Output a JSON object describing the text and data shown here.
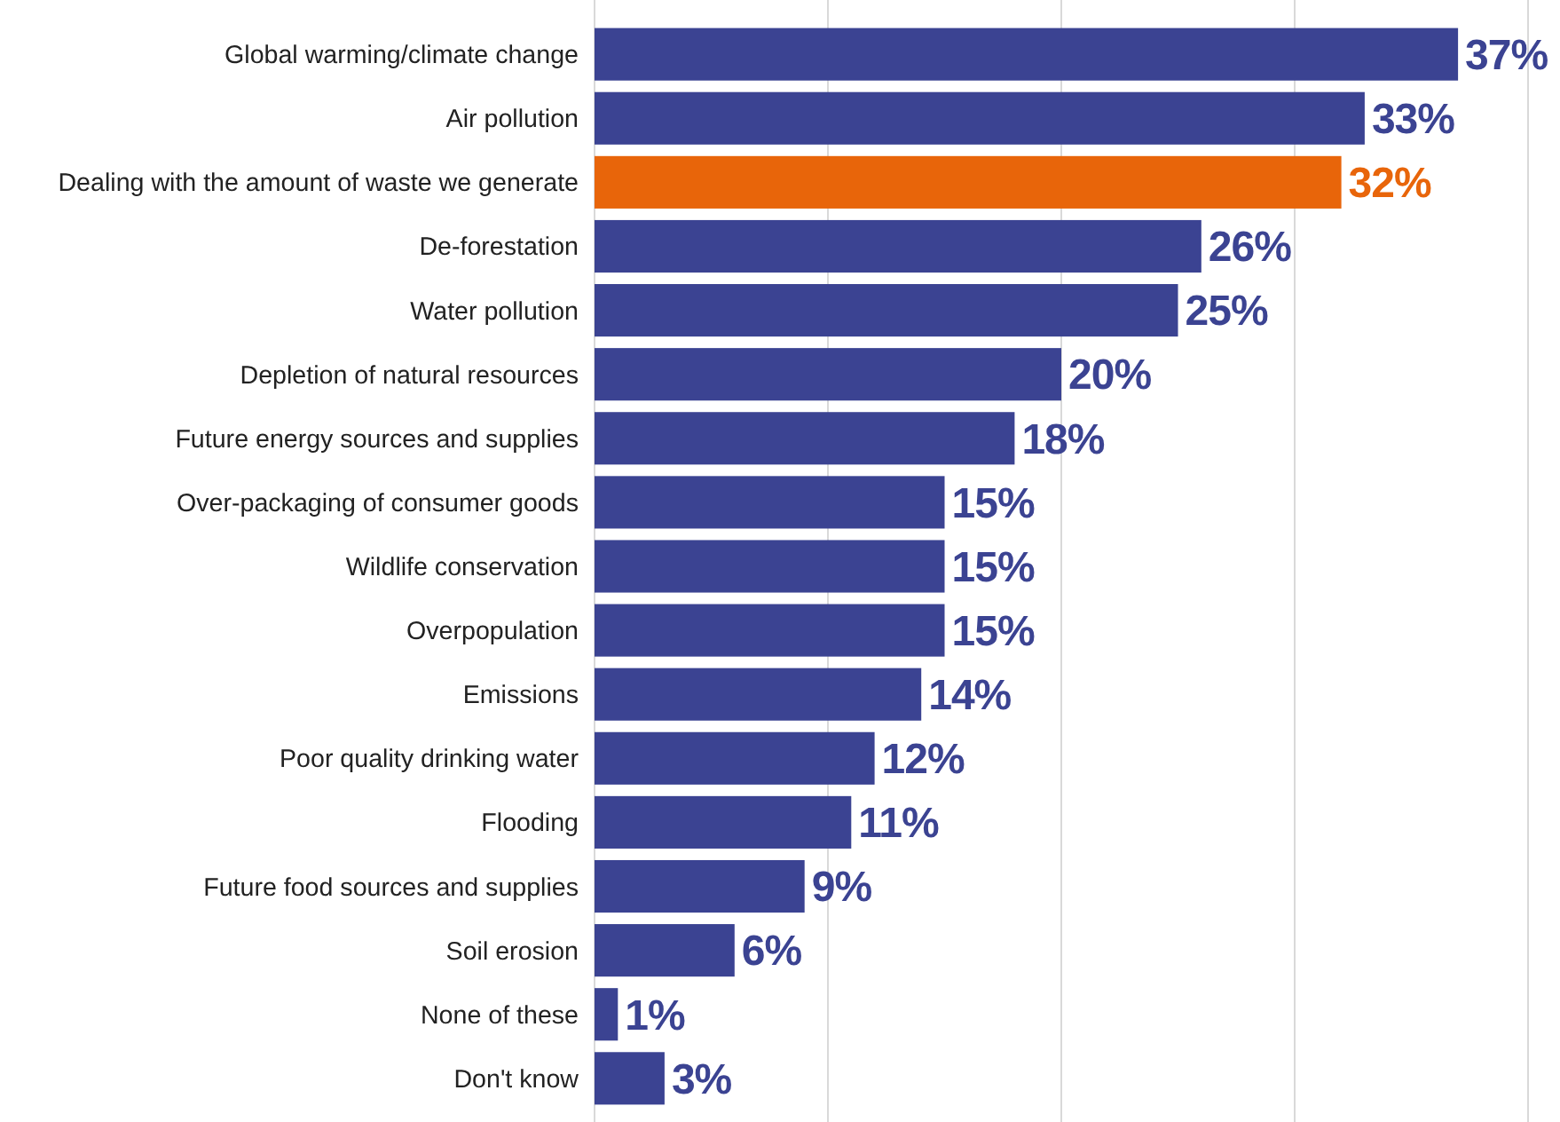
{
  "chart_data": {
    "type": "bar",
    "orientation": "horizontal",
    "categories": [
      "Global warming/climate change",
      "Air pollution",
      "Dealing with the amount of waste we generate",
      "De-forestation",
      "Water pollution",
      "Depletion of natural resources",
      "Future energy sources and supplies",
      "Over-packaging of consumer goods",
      "Wildlife conservation",
      "Overpopulation",
      "Emissions",
      "Poor quality drinking water",
      "Flooding",
      "Future food sources and supplies",
      "Soil erosion",
      "None of these",
      "Don't know"
    ],
    "values": [
      37,
      33,
      32,
      26,
      25,
      20,
      18,
      15,
      15,
      15,
      14,
      12,
      11,
      9,
      6,
      1,
      3
    ],
    "value_labels": [
      "37%",
      "33%",
      "32%",
      "26%",
      "25%",
      "20%",
      "18%",
      "15%",
      "15%",
      "15%",
      "14%",
      "12%",
      "11%",
      "9%",
      "6%",
      "1%",
      "3%"
    ],
    "colors": [
      "#3b4392",
      "#3b4392",
      "#e8650a",
      "#3b4392",
      "#3b4392",
      "#3b4392",
      "#3b4392",
      "#3b4392",
      "#3b4392",
      "#3b4392",
      "#3b4392",
      "#3b4392",
      "#3b4392",
      "#3b4392",
      "#3b4392",
      "#3b4392",
      "#3b4392"
    ],
    "xlim": [
      0,
      40
    ],
    "xticks": [
      {
        "value": 0,
        "label": null
      },
      {
        "value": 10,
        "label": null
      },
      {
        "value": 20,
        "label": null
      },
      {
        "value": 30,
        "label": null
      },
      {
        "value": 40,
        "label": null
      }
    ],
    "grid": "x",
    "tick_labels": "y"
  }
}
